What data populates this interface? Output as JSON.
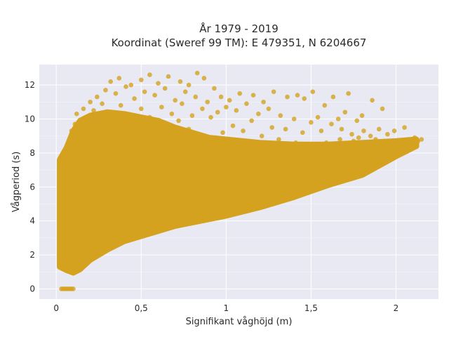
{
  "chart_data": {
    "type": "scatter",
    "title_lines": [
      "År 1979 - 2019",
      "Koordinat (Sweref 99 TM): E 479351, N 6204667"
    ],
    "xlabel": "Signifikant våghöjd (m)",
    "ylabel": "Vågperiod (s)",
    "xlim": [
      -0.1,
      2.25
    ],
    "ylim": [
      -0.6,
      13.2
    ],
    "x_ticks": [
      0,
      0.5,
      1,
      1.5,
      2
    ],
    "x_tick_labels": [
      "0",
      "0,5",
      "1",
      "1,5",
      "2"
    ],
    "y_ticks": [
      0,
      2,
      4,
      6,
      8,
      10,
      12
    ],
    "y_tick_labels": [
      "0",
      "2",
      "4",
      "6",
      "8",
      "10",
      "12"
    ],
    "grid": true,
    "colors": {
      "marker": "#d4a21f",
      "plot_bg": "#e8e9f3",
      "grid": "#ffffff"
    },
    "points": [
      [
        0.02,
        2.6
      ],
      [
        0.03,
        1.6
      ],
      [
        0.03,
        2.9
      ],
      [
        0.04,
        4.0
      ],
      [
        0.04,
        5.5
      ],
      [
        0.05,
        6.2
      ],
      [
        0.05,
        4.6
      ],
      [
        0.06,
        7.0
      ],
      [
        0.06,
        3.5
      ],
      [
        0.07,
        8.0
      ],
      [
        0.07,
        6.5
      ],
      [
        0.08,
        2.2
      ],
      [
        0.08,
        5.0
      ],
      [
        0.09,
        7.5
      ],
      [
        0.09,
        9.3
      ],
      [
        0.1,
        1.3
      ],
      [
        0.1,
        3.8
      ],
      [
        0.1,
        6.0
      ],
      [
        0.1,
        8.5
      ],
      [
        0.11,
        9.7
      ],
      [
        0.11,
        4.5
      ],
      [
        0.12,
        1.2
      ],
      [
        0.12,
        2.8
      ],
      [
        0.12,
        7.2
      ],
      [
        0.12,
        10.3
      ],
      [
        0.13,
        5.4
      ],
      [
        0.13,
        8.9
      ],
      [
        0.14,
        1.5
      ],
      [
        0.14,
        3.2
      ],
      [
        0.14,
        6.8
      ],
      [
        0.15,
        9.4
      ],
      [
        0.15,
        4.1
      ],
      [
        0.16,
        10.6
      ],
      [
        0.16,
        1.8
      ],
      [
        0.16,
        7.6
      ],
      [
        0.17,
        5.9
      ],
      [
        0.17,
        3.0
      ],
      [
        0.18,
        8.2
      ],
      [
        0.18,
        10.0
      ],
      [
        0.18,
        2.1
      ],
      [
        0.19,
        6.3
      ],
      [
        0.2,
        4.8
      ],
      [
        0.2,
        9.0
      ],
      [
        0.2,
        11.0
      ],
      [
        0.21,
        2.5
      ],
      [
        0.21,
        7.9
      ],
      [
        0.22,
        5.2
      ],
      [
        0.22,
        10.5
      ],
      [
        0.23,
        3.4
      ],
      [
        0.23,
        8.6
      ],
      [
        0.24,
        6.6
      ],
      [
        0.24,
        11.3
      ],
      [
        0.25,
        2.9
      ],
      [
        0.25,
        9.6
      ],
      [
        0.26,
        4.3
      ],
      [
        0.26,
        7.1
      ],
      [
        0.27,
        10.9
      ],
      [
        0.27,
        5.7
      ],
      [
        0.28,
        3.1
      ],
      [
        0.28,
        8.4
      ],
      [
        0.29,
        11.7
      ],
      [
        0.29,
        6.1
      ],
      [
        0.3,
        3.6
      ],
      [
        0.3,
        9.9
      ],
      [
        0.31,
        4.9
      ],
      [
        0.31,
        7.7
      ],
      [
        0.32,
        12.2
      ],
      [
        0.32,
        5.5
      ],
      [
        0.33,
        3.3
      ],
      [
        0.33,
        10.4
      ],
      [
        0.34,
        8.0
      ],
      [
        0.34,
        6.4
      ],
      [
        0.35,
        11.5
      ],
      [
        0.35,
        4.0
      ],
      [
        0.36,
        9.2
      ],
      [
        0.36,
        7.3
      ],
      [
        0.37,
        3.8
      ],
      [
        0.37,
        12.4
      ],
      [
        0.38,
        5.8
      ],
      [
        0.38,
        10.8
      ],
      [
        0.39,
        8.7
      ],
      [
        0.4,
        4.4
      ],
      [
        0.4,
        6.9
      ],
      [
        0.41,
        11.9
      ],
      [
        0.41,
        9.5
      ],
      [
        0.42,
        5.1
      ],
      [
        0.42,
        3.9
      ],
      [
        0.43,
        7.8
      ],
      [
        0.43,
        10.2
      ],
      [
        0.44,
        12.0
      ],
      [
        0.45,
        6.0
      ],
      [
        0.45,
        4.2
      ],
      [
        0.46,
        8.8
      ],
      [
        0.46,
        11.2
      ],
      [
        0.47,
        5.3
      ],
      [
        0.48,
        9.8
      ],
      [
        0.48,
        7.0
      ],
      [
        0.49,
        4.5
      ],
      [
        0.5,
        12.3
      ],
      [
        0.5,
        6.7
      ],
      [
        0.5,
        10.6
      ],
      [
        0.51,
        8.3
      ],
      [
        0.52,
        4.8
      ],
      [
        0.52,
        11.6
      ],
      [
        0.53,
        7.4
      ],
      [
        0.53,
        9.1
      ],
      [
        0.54,
        5.6
      ],
      [
        0.55,
        12.6
      ],
      [
        0.55,
        10.1
      ],
      [
        0.56,
        6.2
      ],
      [
        0.56,
        4.6
      ],
      [
        0.57,
        8.9
      ],
      [
        0.58,
        11.4
      ],
      [
        0.58,
        7.6
      ],
      [
        0.59,
        5.0
      ],
      [
        0.6,
        9.7
      ],
      [
        0.6,
        12.1
      ],
      [
        0.61,
        6.5
      ],
      [
        0.62,
        4.9
      ],
      [
        0.62,
        10.7
      ],
      [
        0.63,
        8.1
      ],
      [
        0.64,
        11.8
      ],
      [
        0.64,
        5.8
      ],
      [
        0.65,
        7.2
      ],
      [
        0.66,
        9.3
      ],
      [
        0.66,
        12.5
      ],
      [
        0.67,
        5.2
      ],
      [
        0.68,
        10.3
      ],
      [
        0.68,
        6.9
      ],
      [
        0.69,
        8.6
      ],
      [
        0.7,
        11.1
      ],
      [
        0.71,
        5.5
      ],
      [
        0.71,
        7.9
      ],
      [
        0.72,
        9.9
      ],
      [
        0.73,
        12.2
      ],
      [
        0.73,
        6.3
      ],
      [
        0.74,
        10.9
      ],
      [
        0.75,
        8.2
      ],
      [
        0.75,
        5.9
      ],
      [
        0.76,
        11.6
      ],
      [
        0.77,
        7.0
      ],
      [
        0.78,
        9.4
      ],
      [
        0.78,
        12.0
      ],
      [
        0.79,
        6.6
      ],
      [
        0.8,
        10.2
      ],
      [
        0.8,
        8.7
      ],
      [
        0.81,
        5.7
      ],
      [
        0.82,
        11.3
      ],
      [
        0.83,
        7.5
      ],
      [
        0.83,
        12.7
      ],
      [
        0.84,
        9.0
      ],
      [
        0.85,
        6.1
      ],
      [
        0.86,
        10.6
      ],
      [
        0.86,
        8.0
      ],
      [
        0.87,
        12.4
      ],
      [
        0.88,
        6.8
      ],
      [
        0.89,
        11.0
      ],
      [
        0.9,
        8.5
      ],
      [
        0.9,
        6.0
      ],
      [
        0.91,
        10.1
      ],
      [
        0.92,
        7.3
      ],
      [
        0.93,
        11.8
      ],
      [
        0.94,
        8.9
      ],
      [
        0.95,
        6.4
      ],
      [
        0.95,
        10.4
      ],
      [
        0.96,
        7.8
      ],
      [
        0.97,
        11.3
      ],
      [
        0.98,
        9.2
      ],
      [
        0.99,
        6.9
      ],
      [
        1.0,
        10.7
      ],
      [
        1.0,
        8.2
      ],
      [
        1.01,
        6.3
      ],
      [
        1.02,
        11.1
      ],
      [
        1.03,
        7.6
      ],
      [
        1.04,
        9.6
      ],
      [
        1.05,
        6.8
      ],
      [
        1.06,
        10.5
      ],
      [
        1.07,
        8.4
      ],
      [
        1.08,
        11.5
      ],
      [
        1.09,
        7.1
      ],
      [
        1.1,
        9.3
      ],
      [
        1.11,
        6.9
      ],
      [
        1.12,
        10.9
      ],
      [
        1.13,
        8.0
      ],
      [
        1.14,
        7.4
      ],
      [
        1.15,
        9.9
      ],
      [
        1.16,
        11.4
      ],
      [
        1.17,
        7.0
      ],
      [
        1.18,
        8.6
      ],
      [
        1.19,
        10.3
      ],
      [
        1.2,
        7.5
      ],
      [
        1.21,
        9.0
      ],
      [
        1.22,
        11.0
      ],
      [
        1.23,
        7.8
      ],
      [
        1.24,
        8.4
      ],
      [
        1.25,
        10.6
      ],
      [
        1.26,
        7.3
      ],
      [
        1.27,
        9.5
      ],
      [
        1.28,
        11.6
      ],
      [
        1.3,
        7.9
      ],
      [
        1.31,
        8.8
      ],
      [
        1.32,
        10.2
      ],
      [
        1.33,
        7.6
      ],
      [
        1.35,
        9.4
      ],
      [
        1.36,
        11.3
      ],
      [
        1.37,
        8.0
      ],
      [
        1.38,
        7.4
      ],
      [
        1.4,
        10.0
      ],
      [
        1.41,
        8.6
      ],
      [
        1.42,
        11.4
      ],
      [
        1.43,
        7.9
      ],
      [
        1.45,
        9.2
      ],
      [
        1.46,
        11.2
      ],
      [
        1.47,
        8.3
      ],
      [
        1.48,
        7.7
      ],
      [
        1.5,
        9.8
      ],
      [
        1.51,
        11.6
      ],
      [
        1.52,
        8.5
      ],
      [
        1.54,
        10.1
      ],
      [
        1.55,
        7.9
      ],
      [
        1.56,
        9.3
      ],
      [
        1.58,
        10.8
      ],
      [
        1.59,
        8.6
      ],
      [
        1.6,
        8.0
      ],
      [
        1.62,
        9.7
      ],
      [
        1.63,
        11.3
      ],
      [
        1.64,
        8.4
      ],
      [
        1.66,
        10.0
      ],
      [
        1.67,
        8.8
      ],
      [
        1.68,
        9.4
      ],
      [
        1.7,
        10.4
      ],
      [
        1.71,
        8.5
      ],
      [
        1.72,
        11.5
      ],
      [
        1.74,
        9.1
      ],
      [
        1.75,
        8.7
      ],
      [
        1.77,
        9.9
      ],
      [
        1.78,
        8.9
      ],
      [
        1.8,
        10.2
      ],
      [
        1.81,
        9.3
      ],
      [
        1.83,
        8.6
      ],
      [
        1.85,
        9.0
      ],
      [
        1.86,
        11.1
      ],
      [
        1.88,
        8.8
      ],
      [
        1.9,
        9.4
      ],
      [
        1.92,
        10.6
      ],
      [
        1.93,
        8.7
      ],
      [
        1.95,
        9.1
      ],
      [
        1.97,
        8.5
      ],
      [
        1.99,
        9.3
      ],
      [
        2.0,
        8.4
      ],
      [
        2.01,
        8.0
      ],
      [
        2.03,
        8.6
      ],
      [
        2.05,
        9.5
      ],
      [
        2.07,
        8.8
      ],
      [
        2.09,
        8.5
      ],
      [
        2.11,
        8.9
      ],
      [
        2.13,
        8.7
      ],
      [
        2.15,
        8.8
      ],
      [
        0.03,
        0.0
      ],
      [
        0.04,
        0.0
      ],
      [
        0.05,
        0.0
      ],
      [
        0.06,
        0.0
      ],
      [
        0.07,
        0.0
      ],
      [
        0.08,
        0.0
      ],
      [
        0.09,
        0.0
      ],
      [
        0.1,
        0.0
      ]
    ]
  }
}
